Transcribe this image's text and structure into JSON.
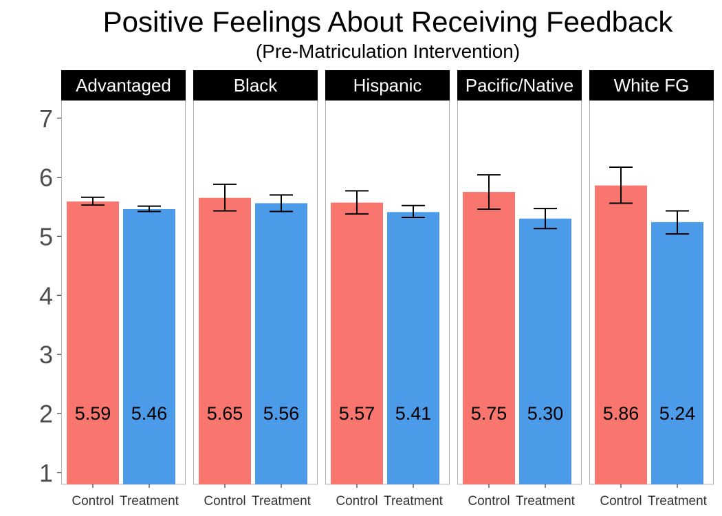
{
  "chart_data": {
    "type": "bar",
    "title": "Positive Feelings About Receiving Feedback",
    "subtitle": "(Pre-Matriculation Intervention)",
    "xlabel": "",
    "ylabel": "",
    "ylim": [
      0.8,
      7.3
    ],
    "yticks": [
      1,
      2,
      3,
      4,
      5,
      6,
      7
    ],
    "categories": [
      "Control",
      "Treatment"
    ],
    "colors": {
      "Control": "#F8766D",
      "Treatment": "#4C9BE8"
    },
    "legend": "none",
    "grid": false,
    "panels": [
      {
        "label": "Advantaged",
        "bars": [
          {
            "category": "Control",
            "value": 5.59,
            "label": "5.59",
            "err_low": 5.53,
            "err_high": 5.66
          },
          {
            "category": "Treatment",
            "value": 5.46,
            "label": "5.46",
            "err_low": 5.42,
            "err_high": 5.51
          }
        ]
      },
      {
        "label": "Black",
        "bars": [
          {
            "category": "Control",
            "value": 5.65,
            "label": "5.65",
            "err_low": 5.43,
            "err_high": 5.88
          },
          {
            "category": "Treatment",
            "value": 5.56,
            "label": "5.56",
            "err_low": 5.42,
            "err_high": 5.7
          }
        ]
      },
      {
        "label": "Hispanic",
        "bars": [
          {
            "category": "Control",
            "value": 5.57,
            "label": "5.57",
            "err_low": 5.38,
            "err_high": 5.77
          },
          {
            "category": "Treatment",
            "value": 5.41,
            "label": "5.41",
            "err_low": 5.32,
            "err_high": 5.52
          }
        ]
      },
      {
        "label": "Pacific/Native",
        "bars": [
          {
            "category": "Control",
            "value": 5.75,
            "label": "5.75",
            "err_low": 5.46,
            "err_high": 6.04
          },
          {
            "category": "Treatment",
            "value": 5.3,
            "label": "5.30",
            "err_low": 5.13,
            "err_high": 5.47
          }
        ]
      },
      {
        "label": "White FG",
        "bars": [
          {
            "category": "Control",
            "value": 5.86,
            "label": "5.86",
            "err_low": 5.56,
            "err_high": 6.17
          },
          {
            "category": "Treatment",
            "value": 5.24,
            "label": "5.24",
            "err_low": 5.04,
            "err_high": 5.43
          }
        ]
      }
    ]
  }
}
